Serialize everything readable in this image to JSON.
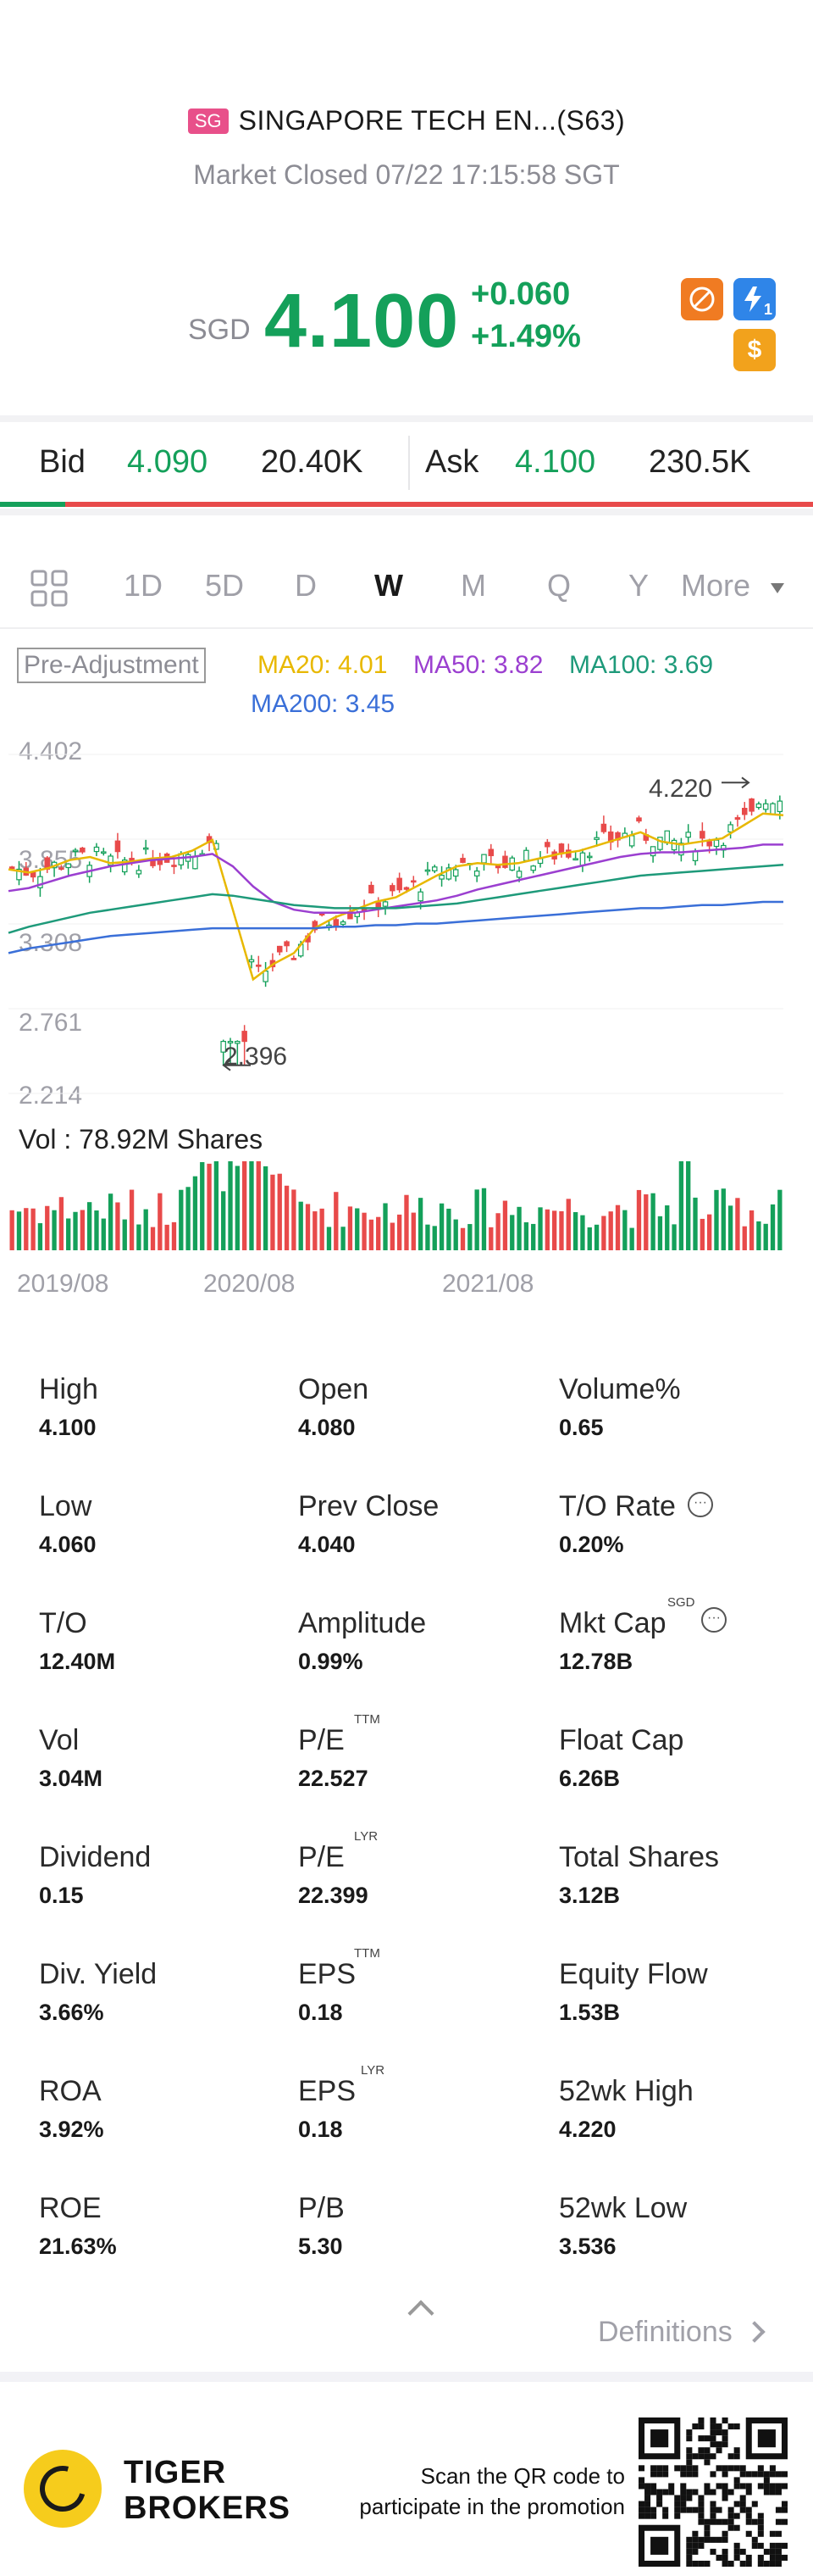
{
  "header": {
    "market_badge": "SG",
    "stock_name": "SINGAPORE TECH EN...(S63)",
    "market_status": "Market Closed 07/22 17:15:58 SGT",
    "currency": "SGD",
    "price": "4.100",
    "change_abs": "+0.060",
    "change_pct": "+1.49%",
    "icons": [
      "short-sell-icon",
      "lightning-icon",
      "dollar-icon"
    ],
    "lightning_sub": "1",
    "dollar_symbol": "$"
  },
  "bid_ask": {
    "bid_label": "Bid",
    "bid_price": "4.090",
    "bid_size": "20.40K",
    "ask_label": "Ask",
    "ask_price": "4.100",
    "ask_size": "230.5K",
    "bid_ratio": 0.08
  },
  "tabs": {
    "items": [
      "1D",
      "5D",
      "D",
      "W",
      "M",
      "Q",
      "Y"
    ],
    "active": "W",
    "more_label": "More"
  },
  "chart_labels": {
    "adjustment": "Pre-Adjustment",
    "ma20": "MA20: 4.01",
    "ma50": "MA50: 3.82",
    "ma100": "MA100: 3.69",
    "ma200": "MA200: 3.45",
    "high_annot": "4.220",
    "low_annot": "2.396",
    "volume": "Vol  : 78.92M Shares"
  },
  "chart_data": {
    "type": "candlestick",
    "y_ticks": [
      "4.402",
      "3.855",
      "3.308",
      "2.761",
      "2.214"
    ],
    "ylim": [
      2.214,
      4.402
    ],
    "x_ticks": [
      "2019/08",
      "2020/08",
      "2021/08"
    ],
    "period_high": 4.22,
    "period_low": 2.396,
    "ma": {
      "MA20": 4.01,
      "MA50": 3.82,
      "MA100": 3.69,
      "MA200": 3.45
    },
    "volume": "78.92M",
    "series": [
      {
        "name": "MA20",
        "values": [
          3.66,
          3.64,
          3.67,
          3.72,
          3.74,
          3.7,
          3.71,
          3.73,
          3.74,
          3.78,
          3.85,
          3.4,
          2.95,
          3.05,
          3.12,
          3.28,
          3.35,
          3.4,
          3.45,
          3.48,
          3.55,
          3.62,
          3.68,
          3.7,
          3.69,
          3.7,
          3.73,
          3.76,
          3.78,
          3.82,
          3.86,
          3.9,
          3.84,
          3.82,
          3.84,
          3.86,
          3.94,
          4.02,
          4.01
        ]
      },
      {
        "name": "MA50",
        "values": [
          3.52,
          3.54,
          3.58,
          3.62,
          3.65,
          3.68,
          3.7,
          3.72,
          3.73,
          3.74,
          3.76,
          3.68,
          3.55,
          3.45,
          3.4,
          3.38,
          3.38,
          3.38,
          3.4,
          3.42,
          3.44,
          3.46,
          3.49,
          3.53,
          3.56,
          3.59,
          3.62,
          3.65,
          3.68,
          3.71,
          3.74,
          3.76,
          3.77,
          3.77,
          3.78,
          3.79,
          3.8,
          3.82,
          3.82
        ]
      },
      {
        "name": "MA100",
        "values": [
          3.25,
          3.29,
          3.32,
          3.35,
          3.38,
          3.4,
          3.42,
          3.44,
          3.46,
          3.48,
          3.5,
          3.49,
          3.47,
          3.45,
          3.43,
          3.42,
          3.41,
          3.41,
          3.41,
          3.41,
          3.42,
          3.43,
          3.44,
          3.46,
          3.48,
          3.5,
          3.52,
          3.54,
          3.56,
          3.58,
          3.6,
          3.62,
          3.63,
          3.64,
          3.65,
          3.66,
          3.67,
          3.68,
          3.69
        ]
      },
      {
        "name": "MA200",
        "values": [
          3.12,
          3.15,
          3.17,
          3.19,
          3.21,
          3.23,
          3.24,
          3.25,
          3.26,
          3.27,
          3.28,
          3.28,
          3.28,
          3.28,
          3.28,
          3.28,
          3.29,
          3.29,
          3.3,
          3.3,
          3.31,
          3.31,
          3.32,
          3.33,
          3.34,
          3.35,
          3.36,
          3.37,
          3.38,
          3.39,
          3.4,
          3.41,
          3.41,
          3.42,
          3.43,
          3.43,
          3.44,
          3.45,
          3.45
        ]
      }
    ]
  },
  "stats": [
    {
      "label": "High",
      "value": "4.100"
    },
    {
      "label": "Open",
      "value": "4.080"
    },
    {
      "label": "Volume%",
      "value": "0.65"
    },
    {
      "label": "Low",
      "value": "4.060"
    },
    {
      "label": "Prev Close",
      "value": "4.040"
    },
    {
      "label": "T/O Rate",
      "value": "0.20%"
    },
    {
      "label": "T/O",
      "value": "12.40M"
    },
    {
      "label": "Amplitude",
      "value": "0.99%"
    },
    {
      "label": "Mkt Cap",
      "value": "12.78B"
    },
    {
      "label": "Vol",
      "value": "3.04M"
    },
    {
      "label": "P/E",
      "value": "22.527"
    },
    {
      "label": "Float Cap",
      "value": "6.26B"
    },
    {
      "label": "Dividend",
      "value": "0.15"
    },
    {
      "label": "P/E",
      "value": "22.399"
    },
    {
      "label": "Total Shares",
      "value": "3.12B"
    },
    {
      "label": "Div. Yield",
      "value": "3.66%"
    },
    {
      "label": "EPS",
      "value": "0.18"
    },
    {
      "label": "Equity Flow",
      "value": "1.53B"
    },
    {
      "label": "ROA",
      "value": "3.92%"
    },
    {
      "label": "EPS",
      "value": "0.18"
    },
    {
      "label": "52wk High",
      "value": "4.220"
    },
    {
      "label": "ROE",
      "value": "21.63%"
    },
    {
      "label": "P/B",
      "value": "5.30"
    },
    {
      "label": "52wk Low",
      "value": "3.536"
    }
  ],
  "stat_sups": {
    "ttm": "TTM",
    "lyr": "LYR",
    "sgd": "SGD",
    "info": "···"
  },
  "definitions_label": "Definitions",
  "footer": {
    "brand_line1": "TIGER",
    "brand_line2": "BROKERS",
    "qr_line1": "Scan the QR code to",
    "qr_line2": "participate in the promotion"
  },
  "colors": {
    "up": "#14a05a",
    "down": "#e84a4a",
    "ma20": "#e8b800",
    "ma50": "#9b3fd0",
    "ma100": "#1e9a7a",
    "ma200": "#3a6fd8"
  }
}
